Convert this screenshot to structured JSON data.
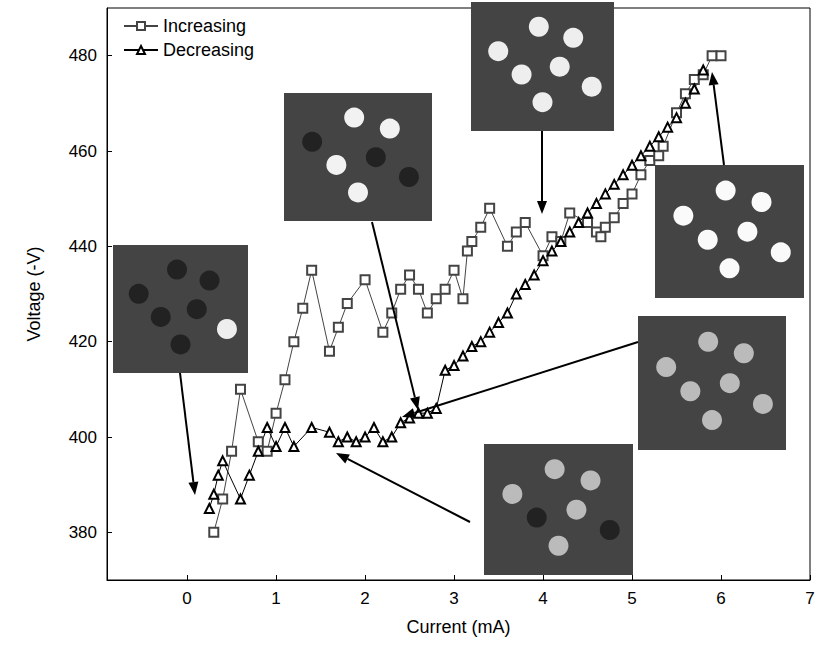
{
  "chart_data": {
    "type": "line",
    "x_label": "Current (mA)",
    "y_label": "Voltage (-V)",
    "xlim": [
      -0.9,
      7
    ],
    "xticks": [
      0,
      1,
      2,
      3,
      4,
      5,
      6,
      7
    ],
    "ylim": [
      370,
      490
    ],
    "yticks": [
      380,
      400,
      420,
      440,
      460,
      480
    ],
    "grid": false,
    "legend": "top-left",
    "series": [
      {
        "name": "Increasing",
        "color": "#444444",
        "marker": "square",
        "line_style": "solid",
        "x": [
          0.3,
          0.4,
          0.5,
          0.6,
          0.8,
          0.9,
          1.0,
          1.1,
          1.2,
          1.3,
          1.4,
          1.6,
          1.7,
          1.8,
          2.0,
          2.2,
          2.3,
          2.4,
          2.5,
          2.6,
          2.7,
          2.8,
          2.9,
          3.0,
          3.1,
          3.15,
          3.2,
          3.3,
          3.4,
          3.6,
          3.7,
          3.8,
          4.0,
          4.1,
          4.2,
          4.3,
          4.5,
          4.6,
          4.65,
          4.7,
          4.8,
          4.9,
          5.0,
          5.1,
          5.2,
          5.3,
          5.35,
          5.5,
          5.6,
          5.7,
          5.8,
          5.9,
          6.0
        ],
        "values": [
          380,
          387,
          397,
          410,
          399,
          397,
          405,
          412,
          420,
          427,
          435,
          418,
          423,
          428,
          433,
          422,
          426,
          431,
          434,
          431,
          426,
          429,
          431,
          435,
          429,
          439,
          441,
          444,
          448,
          440,
          443,
          445,
          438,
          442,
          441,
          447,
          445,
          443,
          442,
          444,
          446,
          449,
          451,
          455,
          458,
          459,
          461,
          468,
          472,
          475,
          476,
          480,
          480
        ]
      },
      {
        "name": "Decreasing",
        "color": "#000000",
        "marker": "triangle",
        "line_style": "solid",
        "x": [
          0.25,
          0.3,
          0.35,
          0.4,
          0.6,
          0.7,
          0.8,
          0.9,
          1.0,
          1.1,
          1.2,
          1.4,
          1.6,
          1.7,
          1.8,
          1.9,
          2.0,
          2.1,
          2.2,
          2.3,
          2.4,
          2.5,
          2.6,
          2.7,
          2.8,
          2.9,
          3.0,
          3.1,
          3.2,
          3.3,
          3.4,
          3.5,
          3.6,
          3.7,
          3.8,
          3.9,
          4.0,
          4.1,
          4.2,
          4.3,
          4.4,
          4.5,
          4.6,
          4.7,
          4.8,
          4.9,
          5.0,
          5.1,
          5.2,
          5.3,
          5.4,
          5.5,
          5.6,
          5.7,
          5.8
        ],
        "values": [
          385,
          388,
          392,
          395,
          387,
          392,
          397,
          402,
          398,
          402,
          398,
          402,
          401,
          399,
          400,
          399,
          400,
          402,
          399,
          400,
          403,
          404,
          405,
          405,
          406,
          414,
          415,
          417,
          419,
          420,
          422,
          424,
          426,
          430,
          432,
          434,
          437,
          439,
          441,
          443,
          445,
          447,
          449,
          451,
          453,
          455,
          457,
          459,
          461,
          463,
          465,
          467,
          470,
          473,
          477
        ]
      }
    ]
  }
}
